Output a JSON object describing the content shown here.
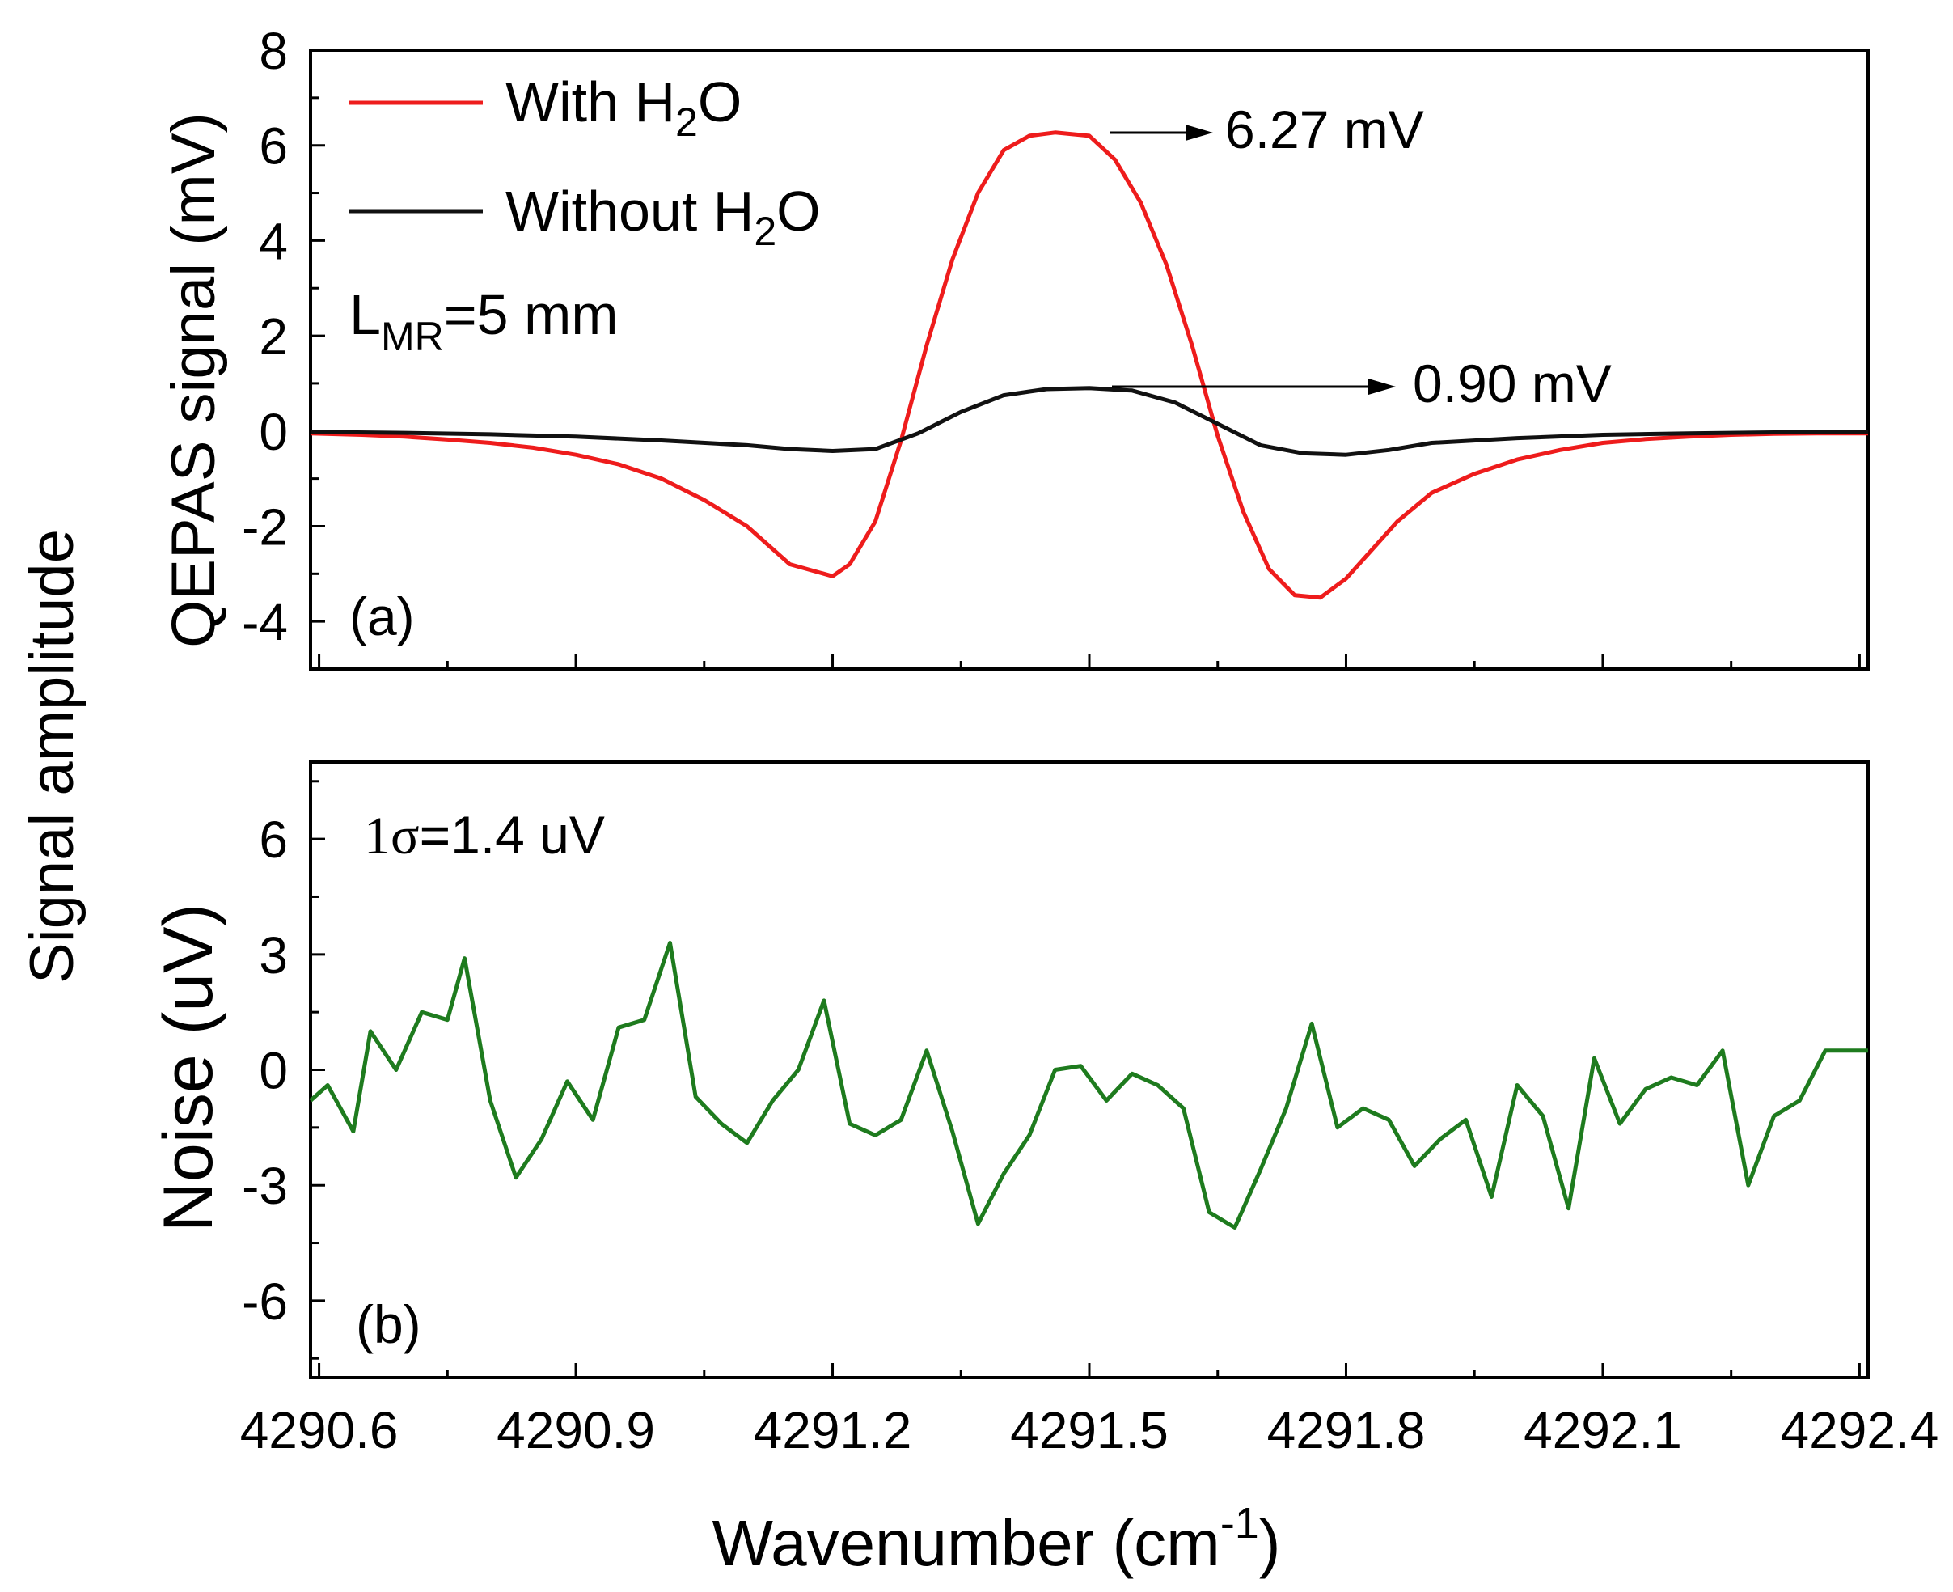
{
  "figure": {
    "y_super_label": "Signal amplitude",
    "x_label_main": "Wavenumber (cm",
    "x_label_sup": "-1",
    "x_label_close": ")",
    "x_ticks": [
      "4290.6",
      "4290.9",
      "4291.2",
      "4291.5",
      "4291.8",
      "4292.1",
      "4292.4"
    ]
  },
  "chart_data": [
    {
      "type": "line",
      "panel": "(a)",
      "ylabel": "QEPAS signal (mV)",
      "xlim": [
        4290.59,
        4292.41
      ],
      "ylim": [
        -5,
        8
      ],
      "y_ticks": [
        "8",
        "6",
        "4",
        "2",
        "0",
        "-2",
        "-4"
      ],
      "legend_position": "top-left",
      "annotation_text": {
        "prefix": "L",
        "sub": "MR",
        "suffix": "=5 mm"
      },
      "peak_labels": [
        "6.27 mV",
        "0.90 mV"
      ],
      "series": [
        {
          "name": "With H2O",
          "legend": {
            "prefix": "With H",
            "sub": "2",
            "suffix": "O"
          },
          "color": "#ee1c1c",
          "x": [
            4290.59,
            4290.65,
            4290.7,
            4290.75,
            4290.8,
            4290.85,
            4290.9,
            4290.95,
            4291.0,
            4291.05,
            4291.1,
            4291.15,
            4291.2,
            4291.22,
            4291.25,
            4291.28,
            4291.31,
            4291.34,
            4291.37,
            4291.4,
            4291.43,
            4291.46,
            4291.5,
            4291.53,
            4291.56,
            4291.59,
            4291.62,
            4291.65,
            4291.68,
            4291.71,
            4291.74,
            4291.77,
            4291.8,
            4291.83,
            4291.86,
            4291.9,
            4291.95,
            4292.0,
            4292.05,
            4292.1,
            4292.15,
            4292.2,
            4292.25,
            4292.3,
            4292.35,
            4292.41
          ],
          "y": [
            -0.05,
            -0.08,
            -0.12,
            -0.18,
            -0.25,
            -0.35,
            -0.5,
            -0.7,
            -1.0,
            -1.45,
            -2.0,
            -2.8,
            -3.05,
            -2.8,
            -1.9,
            -0.2,
            1.8,
            3.6,
            5.0,
            5.9,
            6.2,
            6.27,
            6.2,
            5.7,
            4.8,
            3.5,
            1.8,
            -0.1,
            -1.7,
            -2.9,
            -3.45,
            -3.5,
            -3.1,
            -2.5,
            -1.9,
            -1.3,
            -0.9,
            -0.6,
            -0.4,
            -0.25,
            -0.17,
            -0.12,
            -0.08,
            -0.06,
            -0.05,
            -0.05
          ]
        },
        {
          "name": "Without H2O",
          "legend": {
            "prefix": "Without H",
            "sub": "2",
            "suffix": "O"
          },
          "color": "#111111",
          "x": [
            4290.59,
            4290.7,
            4290.8,
            4290.9,
            4291.0,
            4291.1,
            4291.15,
            4291.2,
            4291.25,
            4291.3,
            4291.35,
            4291.4,
            4291.45,
            4291.5,
            4291.55,
            4291.6,
            4291.65,
            4291.7,
            4291.75,
            4291.8,
            4291.85,
            4291.9,
            4292.0,
            4292.1,
            4292.2,
            4292.3,
            4292.41
          ],
          "y": [
            -0.02,
            -0.04,
            -0.07,
            -0.12,
            -0.2,
            -0.3,
            -0.38,
            -0.42,
            -0.38,
            -0.05,
            0.4,
            0.75,
            0.88,
            0.9,
            0.85,
            0.6,
            0.15,
            -0.3,
            -0.47,
            -0.5,
            -0.4,
            -0.25,
            -0.15,
            -0.08,
            -0.05,
            -0.03,
            -0.02
          ]
        }
      ]
    },
    {
      "type": "line",
      "panel": "(b)",
      "ylabel": "Noise (uV)",
      "xlim": [
        4290.59,
        4292.41
      ],
      "ylim": [
        -8,
        8
      ],
      "y_ticks": [
        "6",
        "3",
        "0",
        "-3",
        "-6"
      ],
      "stat_label": {
        "number": "1",
        "sigma": "σ",
        "suffix": "=1.4 uV"
      },
      "series": [
        {
          "name": "Noise",
          "color": "#1e7b1e",
          "x": [
            4290.59,
            4290.61,
            4290.64,
            4290.66,
            4290.69,
            4290.72,
            4290.75,
            4290.77,
            4290.8,
            4290.83,
            4290.86,
            4290.89,
            4290.92,
            4290.95,
            4290.98,
            4291.01,
            4291.04,
            4291.07,
            4291.1,
            4291.13,
            4291.16,
            4291.19,
            4291.22,
            4291.25,
            4291.28,
            4291.31,
            4291.34,
            4291.37,
            4291.4,
            4291.43,
            4291.46,
            4291.49,
            4291.52,
            4291.55,
            4291.58,
            4291.61,
            4291.64,
            4291.67,
            4291.7,
            4291.73,
            4291.76,
            4291.79,
            4291.82,
            4291.85,
            4291.88,
            4291.91,
            4291.94,
            4291.97,
            4292.0,
            4292.03,
            4292.06,
            4292.09,
            4292.12,
            4292.15,
            4292.18,
            4292.21,
            4292.24,
            4292.27,
            4292.3,
            4292.33,
            4292.36,
            4292.39,
            4292.41
          ],
          "y": [
            -0.8,
            -0.4,
            -1.6,
            1.0,
            0.0,
            1.5,
            1.3,
            2.9,
            -0.8,
            -2.8,
            -1.8,
            -0.3,
            -1.3,
            1.1,
            1.3,
            3.3,
            -0.7,
            -1.4,
            -1.9,
            -0.8,
            0.0,
            1.8,
            -1.4,
            -1.7,
            -1.3,
            0.5,
            -1.6,
            -4.0,
            -2.7,
            -1.7,
            0.0,
            0.1,
            -0.8,
            -0.1,
            -0.4,
            -1.0,
            -3.7,
            -4.1,
            -2.6,
            -1.0,
            1.2,
            -1.5,
            -1.0,
            -1.3,
            -2.5,
            -1.8,
            -1.3,
            -3.3,
            -0.4,
            -1.2,
            -3.6,
            0.3,
            -1.4,
            -0.5,
            -0.2,
            -0.4,
            0.5,
            -3.0,
            -1.2,
            -0.8,
            0.5,
            0.5,
            0.5
          ]
        }
      ]
    }
  ]
}
